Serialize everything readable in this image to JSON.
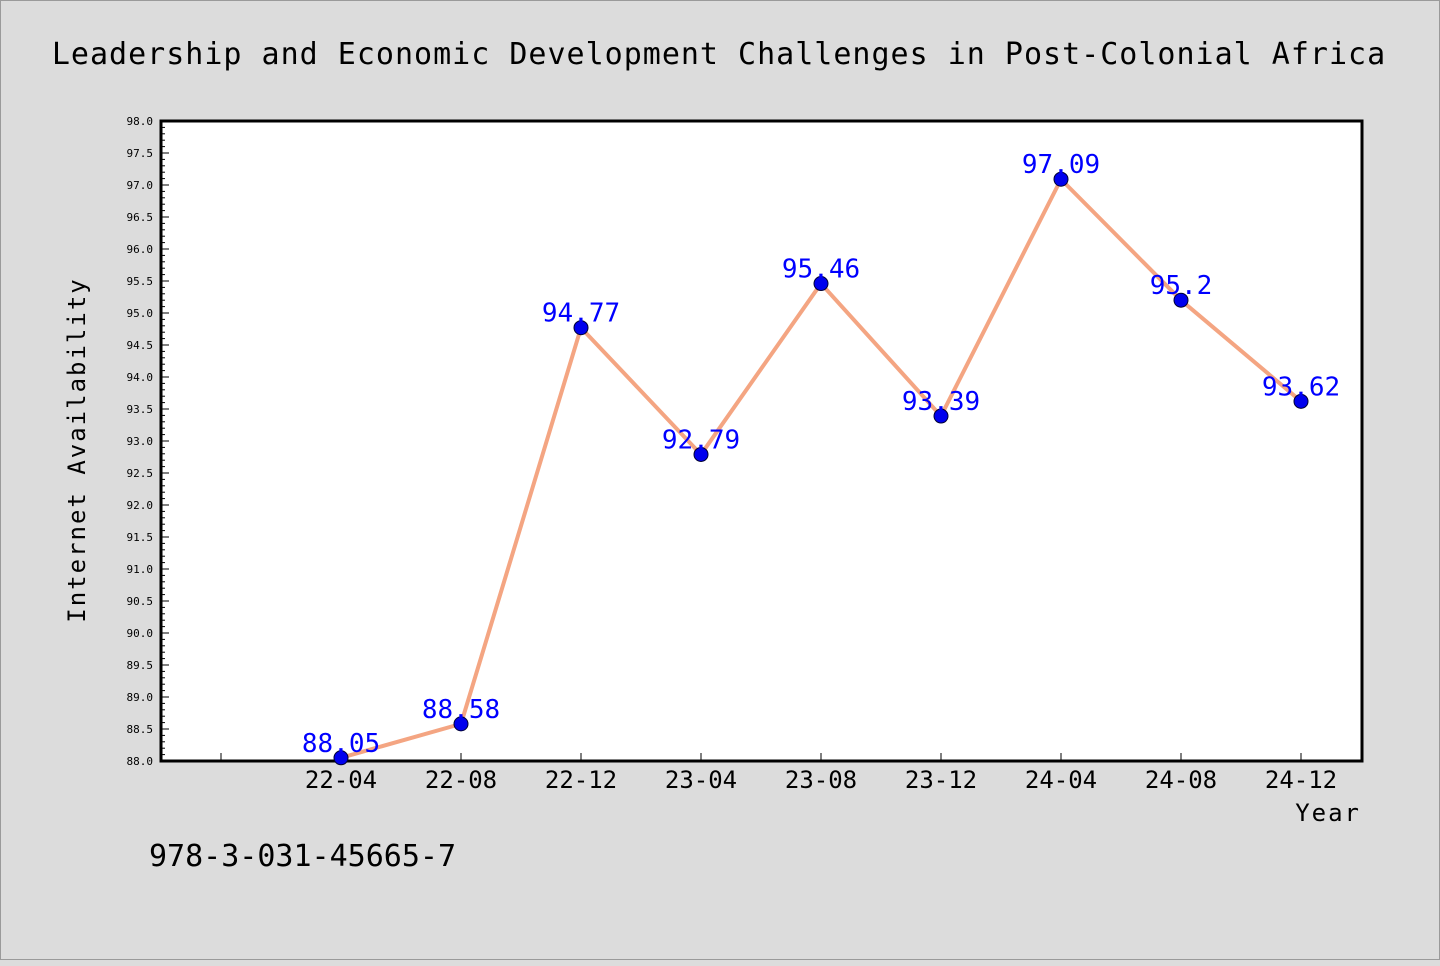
{
  "chart_data": {
    "type": "line",
    "title": "Leadership and Economic Development Challenges in Post-Colonial Africa",
    "xlabel": "Year",
    "ylabel": "Internet Availability",
    "categories": [
      "22-04",
      "22-08",
      "22-12",
      "23-04",
      "23-08",
      "23-12",
      "24-04",
      "24-08",
      "24-12"
    ],
    "values": [
      88.05,
      88.58,
      94.77,
      92.79,
      95.46,
      93.39,
      97.09,
      95.2,
      93.62
    ],
    "data_labels": [
      "88.05",
      "88.58",
      "94.77",
      "92.79",
      "95.46",
      "93.39",
      "97.09",
      "95.2",
      "93.62"
    ],
    "ylim": [
      88.0,
      98.0
    ],
    "yticks": [
      "88.0",
      "88.5",
      "89.0",
      "89.5",
      "90.0",
      "90.5",
      "91.0",
      "91.5",
      "92.0",
      "92.5",
      "93.0",
      "93.5",
      "94.0",
      "94.5",
      "95.0",
      "95.5",
      "96.0",
      "96.5",
      "97.0",
      "97.5",
      "98.0"
    ],
    "line_color": "#f4a582",
    "marker_color": "#0000ee",
    "label_color": "#0000ff",
    "grid": false,
    "legend": "none"
  },
  "footer": {
    "isbn": "978-3-031-45665-7"
  }
}
